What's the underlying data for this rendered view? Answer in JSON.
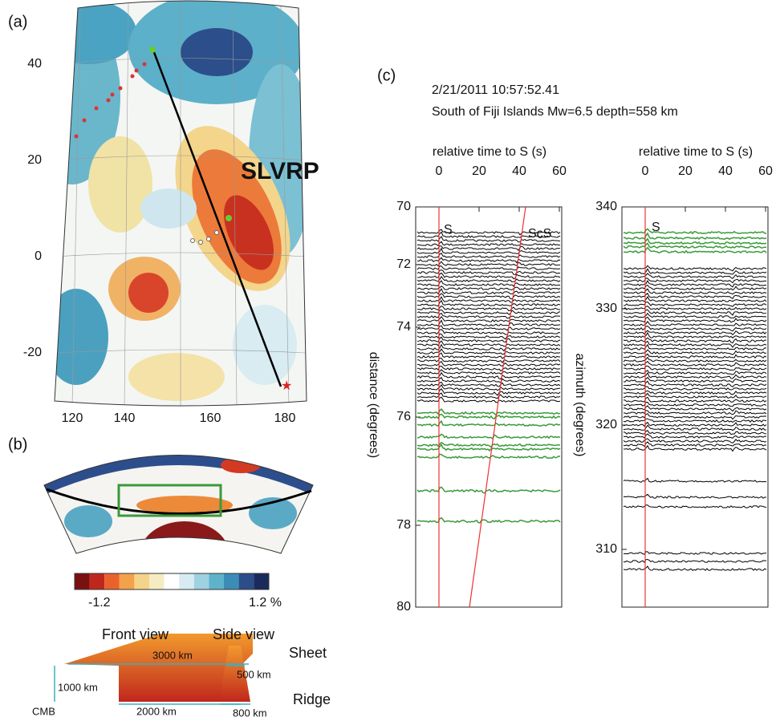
{
  "panel_a": {
    "label": "(a)",
    "lat_ticks": [
      "40",
      "20",
      "0",
      "-20"
    ],
    "lon_ticks": [
      "120",
      "140",
      "160",
      "180"
    ],
    "annotation": "SLVRP"
  },
  "panel_b": {
    "label": "(b)",
    "colorbar_min": "-1.2",
    "colorbar_max": "1.2 %",
    "front_view": "Front view",
    "side_view": "Side view",
    "sheet": "Sheet",
    "ridge": "Ridge",
    "width_top": "3000 km",
    "height": "1000 km",
    "width_bottom": "2000 km",
    "cmb": "CMB",
    "sheet_width": "500 km",
    "ridge_width": "800 km"
  },
  "panel_c": {
    "label": "(c)",
    "date": "2/21/2011 10:57:52.41",
    "event": "South of Fiji Islands Mw=6.5 depth=558 km",
    "left": {
      "xlabel": "relative time to S (s)",
      "xticks": [
        "0",
        "20",
        "40",
        "60"
      ],
      "ylabel": "distance (degrees)",
      "yticks": [
        "70",
        "72",
        "74",
        "76",
        "78",
        "80"
      ],
      "phases": [
        "S",
        "ScS"
      ]
    },
    "right": {
      "xlabel": "relative time to S (s)",
      "xticks": [
        "0",
        "20",
        "40",
        "60"
      ],
      "ylabel": "azimuth (degrees)",
      "yticks": [
        "340",
        "330",
        "320",
        "310"
      ],
      "phases": [
        "S"
      ]
    }
  }
}
